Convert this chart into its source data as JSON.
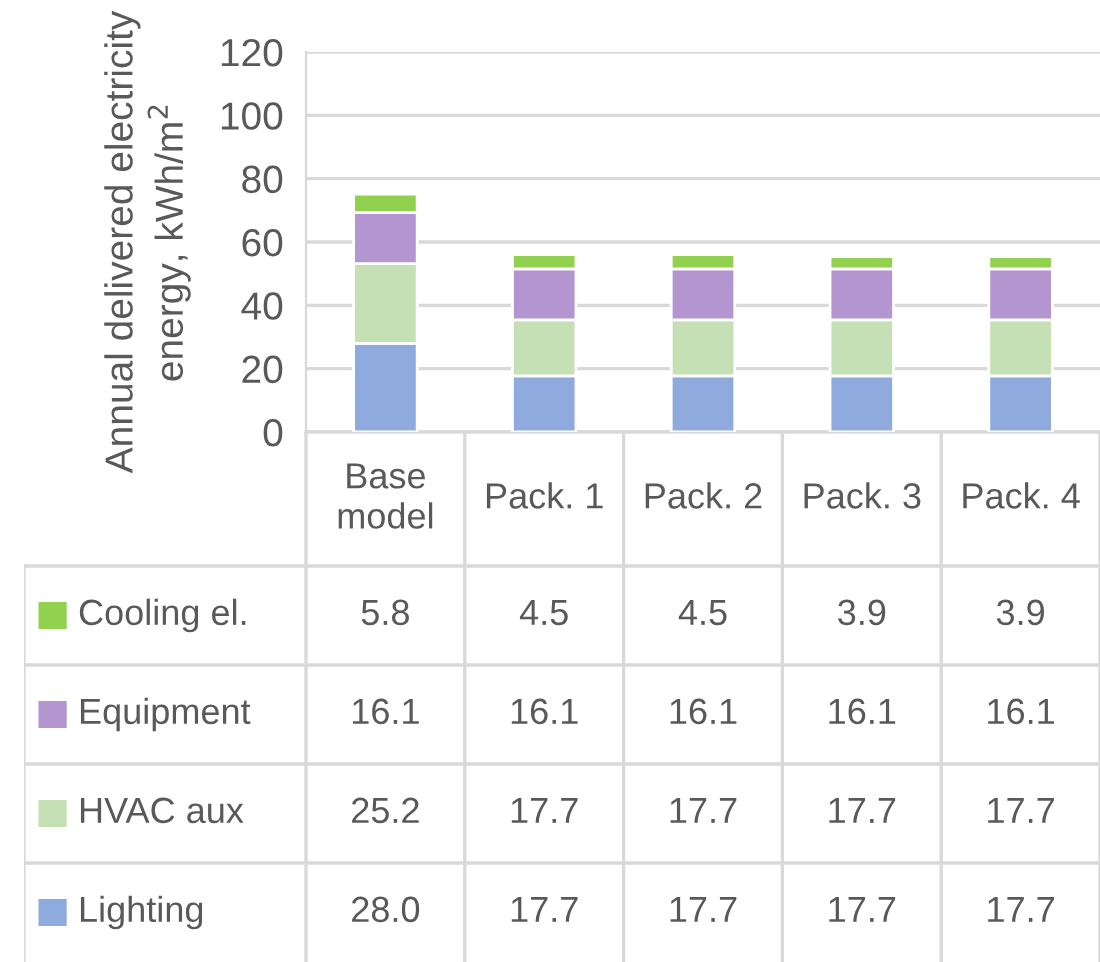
{
  "chart_data": {
    "type": "bar",
    "stacked": true,
    "ylabel": "Annual delivered electricity energy, kWh/m$^{2}$",
    "categories": [
      "Base model",
      "Pack. 1",
      "Pack. 2",
      "Pack. 3",
      "Pack. 4"
    ],
    "series": [
      {
        "name": "Lighting",
        "color": "#8faadc",
        "values": [
          28.0,
          17.7,
          17.7,
          17.7,
          17.7
        ],
        "value_labels": [
          "28.0",
          "17.7",
          "17.7",
          "17.7",
          "17.7"
        ]
      },
      {
        "name": "HVAC aux",
        "color": "#c5e0b4",
        "values": [
          25.2,
          17.7,
          17.7,
          17.7,
          17.7
        ],
        "value_labels": [
          "25.2",
          "17.7",
          "17.7",
          "17.7",
          "17.7"
        ]
      },
      {
        "name": "Equipment",
        "color": "#b395d0",
        "values": [
          16.1,
          16.1,
          16.1,
          16.1,
          16.1
        ],
        "value_labels": [
          "16.1",
          "16.1",
          "16.1",
          "16.1",
          "16.1"
        ]
      },
      {
        "name": "Cooling el.",
        "color": "#92d050",
        "values": [
          5.8,
          4.5,
          4.5,
          3.9,
          3.9
        ],
        "value_labels": [
          "5.8",
          "4.5",
          "4.5",
          "3.9",
          "3.9"
        ]
      }
    ],
    "ylim": [
      0,
      120
    ],
    "yticks": [
      0,
      20,
      40,
      60,
      80,
      100,
      120
    ],
    "grid": "y",
    "legend": "bottom"
  }
}
